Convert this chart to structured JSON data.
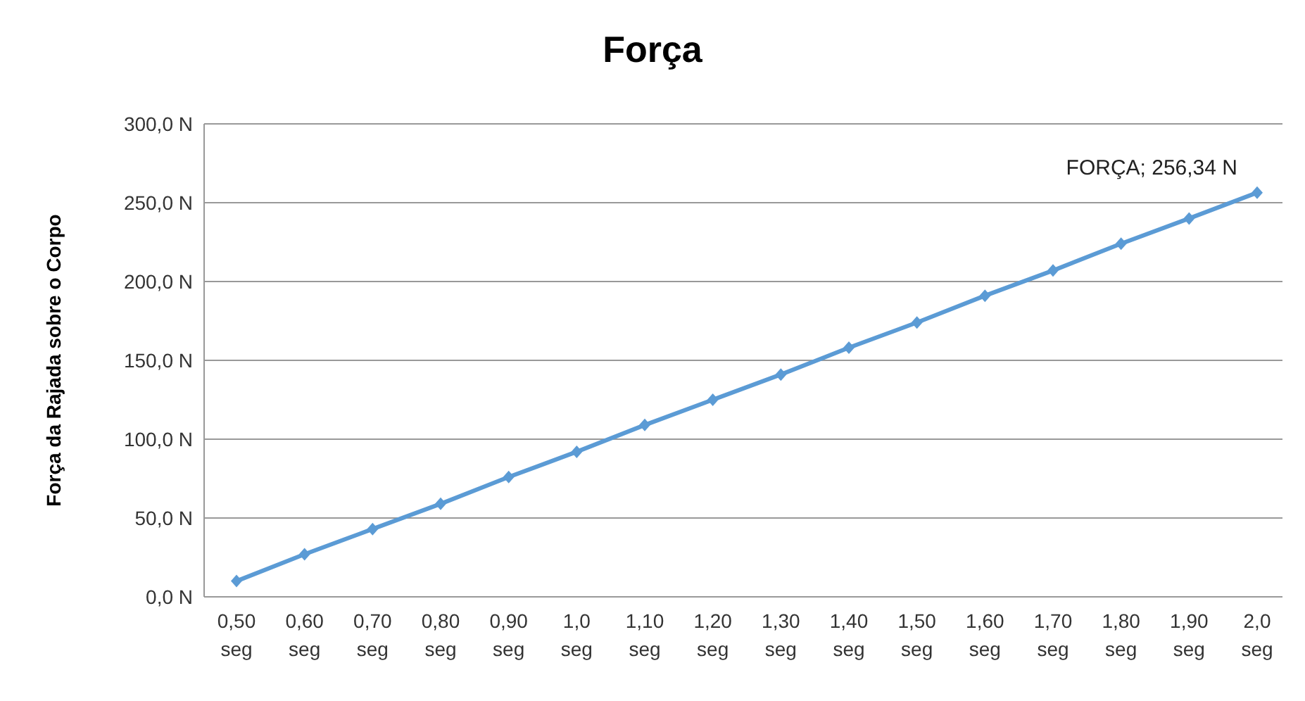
{
  "chart_data": {
    "type": "line",
    "title": "Força",
    "ylabel": "Força da Rajada sobre o Corpo",
    "categories": [
      "0,50 seg",
      "0,60 seg",
      "0,70 seg",
      "0,80 seg",
      "0,90 seg",
      "1,0 seg",
      "1,10 seg",
      "1,20 seg",
      "1,30 seg",
      "1,40 seg",
      "1,50 seg",
      "1,60 seg",
      "1,70 seg",
      "1,80 seg",
      "1,90 seg",
      "2,0 seg"
    ],
    "series": [
      {
        "color": "#5b9bd5",
        "values": [
          10,
          27,
          43,
          59,
          76,
          92,
          109,
          125,
          141,
          158,
          174,
          191,
          207,
          224,
          240,
          256.34
        ]
      }
    ],
    "ylim": [
      0,
      300
    ],
    "yticks": [
      {
        "value": 0,
        "label": "0,0 N"
      },
      {
        "value": 50,
        "label": "50,0 N"
      },
      {
        "value": 100,
        "label": "100,0 N"
      },
      {
        "value": 150,
        "label": "150,0 N"
      },
      {
        "value": 200,
        "label": "200,0 N"
      },
      {
        "value": 250,
        "label": "250,0 N"
      },
      {
        "value": 300,
        "label": "300,0 N"
      }
    ],
    "annotations": [
      {
        "text": "FORÇA; 256,34 N",
        "x": "2,0 seg",
        "y": 256.34
      }
    ],
    "grid": "y",
    "marker": "diamond",
    "line_style": "solid",
    "legend": false
  }
}
